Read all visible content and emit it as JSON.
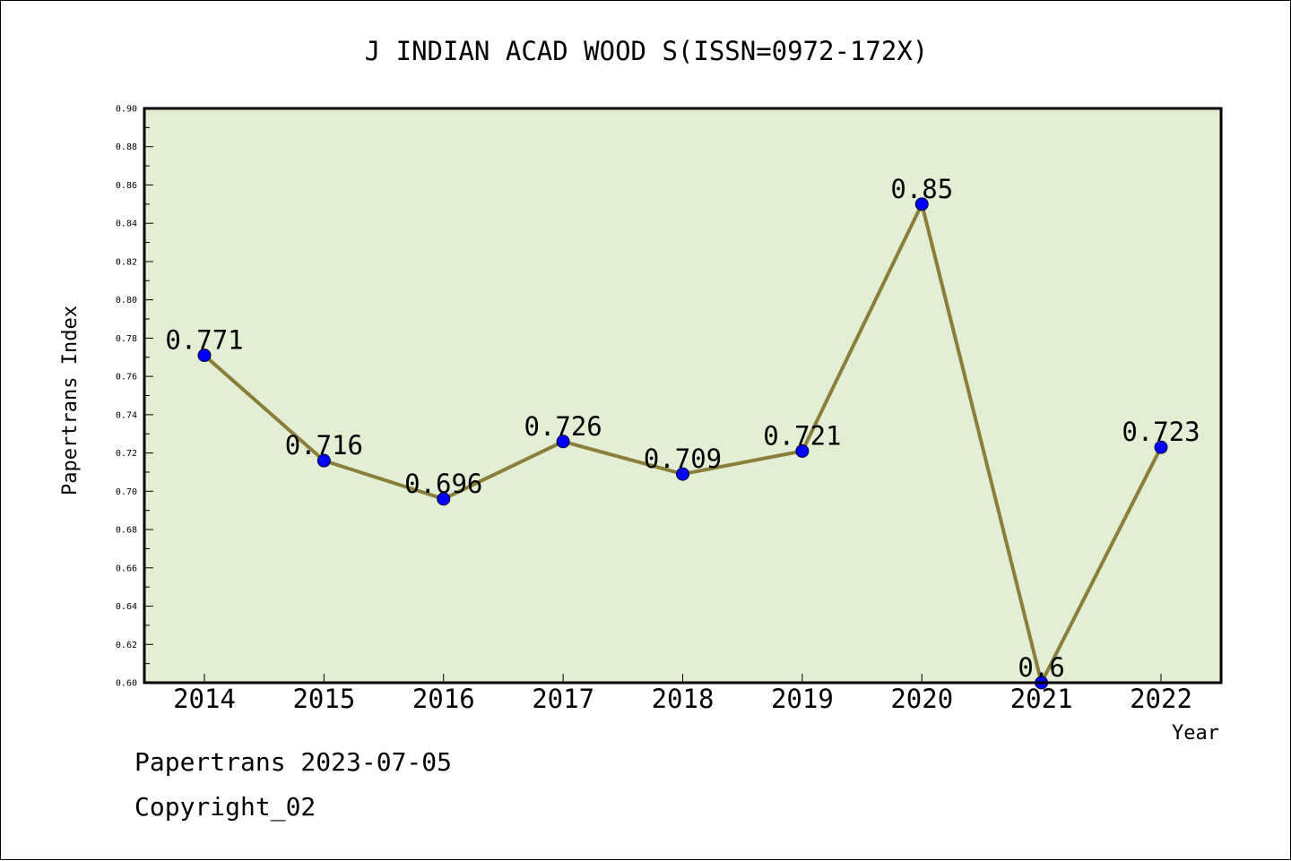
{
  "chart_data": {
    "type": "line",
    "title": "J INDIAN ACAD WOOD S(ISSN=0972-172X)",
    "xlabel": "Year",
    "ylabel": "Papertrans Index",
    "categories": [
      "2014",
      "2015",
      "2016",
      "2017",
      "2018",
      "2019",
      "2020",
      "2021",
      "2022"
    ],
    "series": [
      {
        "values": [
          0.771,
          0.716,
          0.696,
          0.726,
          0.709,
          0.721,
          0.85,
          0.6,
          0.723
        ],
        "data_labels": [
          "0.771",
          "0.716",
          "0.696",
          "0.726",
          "0.709",
          "0.721",
          "0.85",
          "0.6",
          "0.723"
        ]
      }
    ],
    "ylim": [
      0.6,
      0.9
    ],
    "yticks": [
      "0.60",
      "0.62",
      "0.64",
      "0.66",
      "0.68",
      "0.70",
      "0.72",
      "0.74",
      "0.76",
      "0.78",
      "0.80",
      "0.82",
      "0.84",
      "0.86",
      "0.88",
      "0.90"
    ],
    "grid": false,
    "colors": {
      "plot_background": "#e2efd4",
      "line": "#8b7d3a",
      "marker": "#0000ff",
      "axis": "#000000"
    }
  },
  "footer": {
    "source": "Papertrans 2023-07-05",
    "copyright": "Copyright_02"
  }
}
